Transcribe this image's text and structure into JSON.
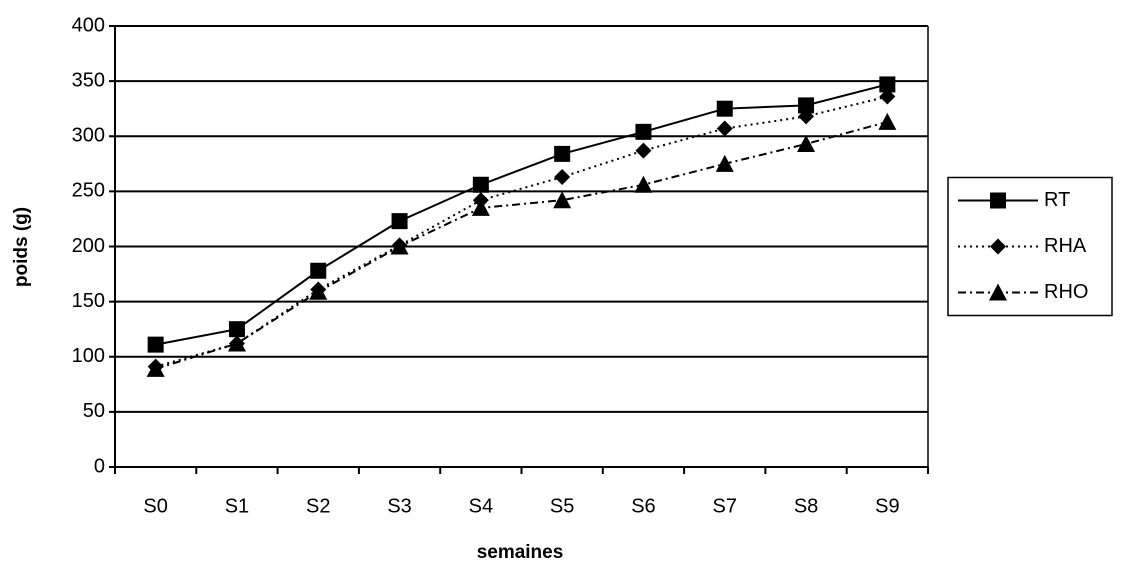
{
  "chart_data": {
    "type": "line",
    "x_label": "semaines",
    "y_label": "poids (g)",
    "categories": [
      "S0",
      "S1",
      "S2",
      "S3",
      "S4",
      "S5",
      "S6",
      "S7",
      "S8",
      "S9"
    ],
    "series": [
      {
        "name": "RT",
        "color": "#000000",
        "marker": "square",
        "line_style": "solid",
        "values": [
          111,
          125,
          178,
          223,
          256,
          284,
          304,
          325,
          328,
          347
        ]
      },
      {
        "name": "RHA",
        "color": "#000000",
        "marker": "diamond",
        "line_style": "dotted",
        "values": [
          91,
          112,
          161,
          201,
          242,
          263,
          287,
          307,
          318,
          336
        ]
      },
      {
        "name": "RHO",
        "color": "#000000",
        "marker": "triangle",
        "line_style": "dashdot",
        "values": [
          89,
          112,
          159,
          200,
          235,
          242,
          256,
          275,
          293,
          313
        ]
      }
    ],
    "ylim": [
      0,
      400
    ],
    "yticks": [
      0,
      50,
      100,
      150,
      200,
      250,
      300,
      350,
      400
    ],
    "grid": true,
    "legend": "right"
  }
}
